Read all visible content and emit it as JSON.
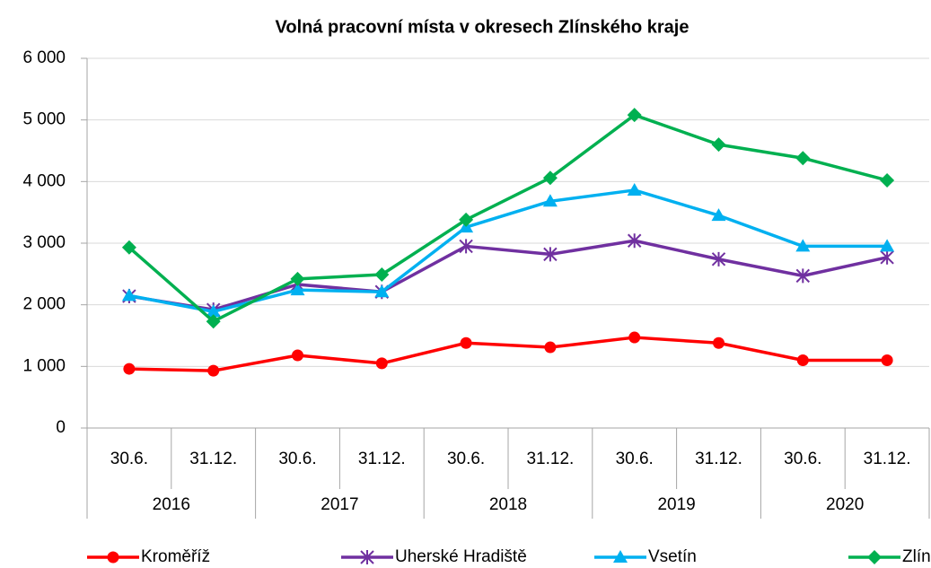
{
  "chart_data": {
    "type": "line",
    "title": "Volná pracovní místa v okresech Zlínského kraje",
    "categories": [
      "30.6.",
      "31.12.",
      "30.6.",
      "31.12.",
      "30.6.",
      "31.12.",
      "30.6.",
      "31.12.",
      "30.6.",
      "31.12."
    ],
    "category_groups": [
      "2016",
      "2017",
      "2018",
      "2019",
      "2020"
    ],
    "series": [
      {
        "name": "Kroměříž",
        "color": "#ff0000",
        "marker": "circle",
        "values": [
          960,
          930,
          1180,
          1050,
          1380,
          1310,
          1470,
          1380,
          1100,
          1100
        ]
      },
      {
        "name": "Uherské Hradiště",
        "color": "#7030a0",
        "marker": "asterisk",
        "values": [
          2140,
          1920,
          2330,
          2210,
          2950,
          2820,
          3040,
          2740,
          2470,
          2770
        ]
      },
      {
        "name": "Vsetín",
        "color": "#00b0f0",
        "marker": "triangle",
        "values": [
          2150,
          1890,
          2240,
          2210,
          3260,
          3680,
          3860,
          3450,
          2950,
          2950
        ]
      },
      {
        "name": "Zlín",
        "color": "#00b050",
        "marker": "diamond",
        "values": [
          2930,
          1730,
          2420,
          2490,
          3380,
          4060,
          5080,
          4600,
          4380,
          4020
        ]
      }
    ],
    "ylim": [
      0,
      6000
    ],
    "yticks": [
      0,
      {
        "value": 1000,
        "label": "1 000"
      },
      {
        "value": 2000,
        "label": "2 000"
      },
      {
        "value": 3000,
        "label": "3 000"
      },
      {
        "value": 4000,
        "label": "4 000"
      },
      {
        "value": 5000,
        "label": "5 000"
      },
      {
        "value": 6000,
        "label": "6 000"
      }
    ],
    "grid": true,
    "legend": "bottom"
  }
}
